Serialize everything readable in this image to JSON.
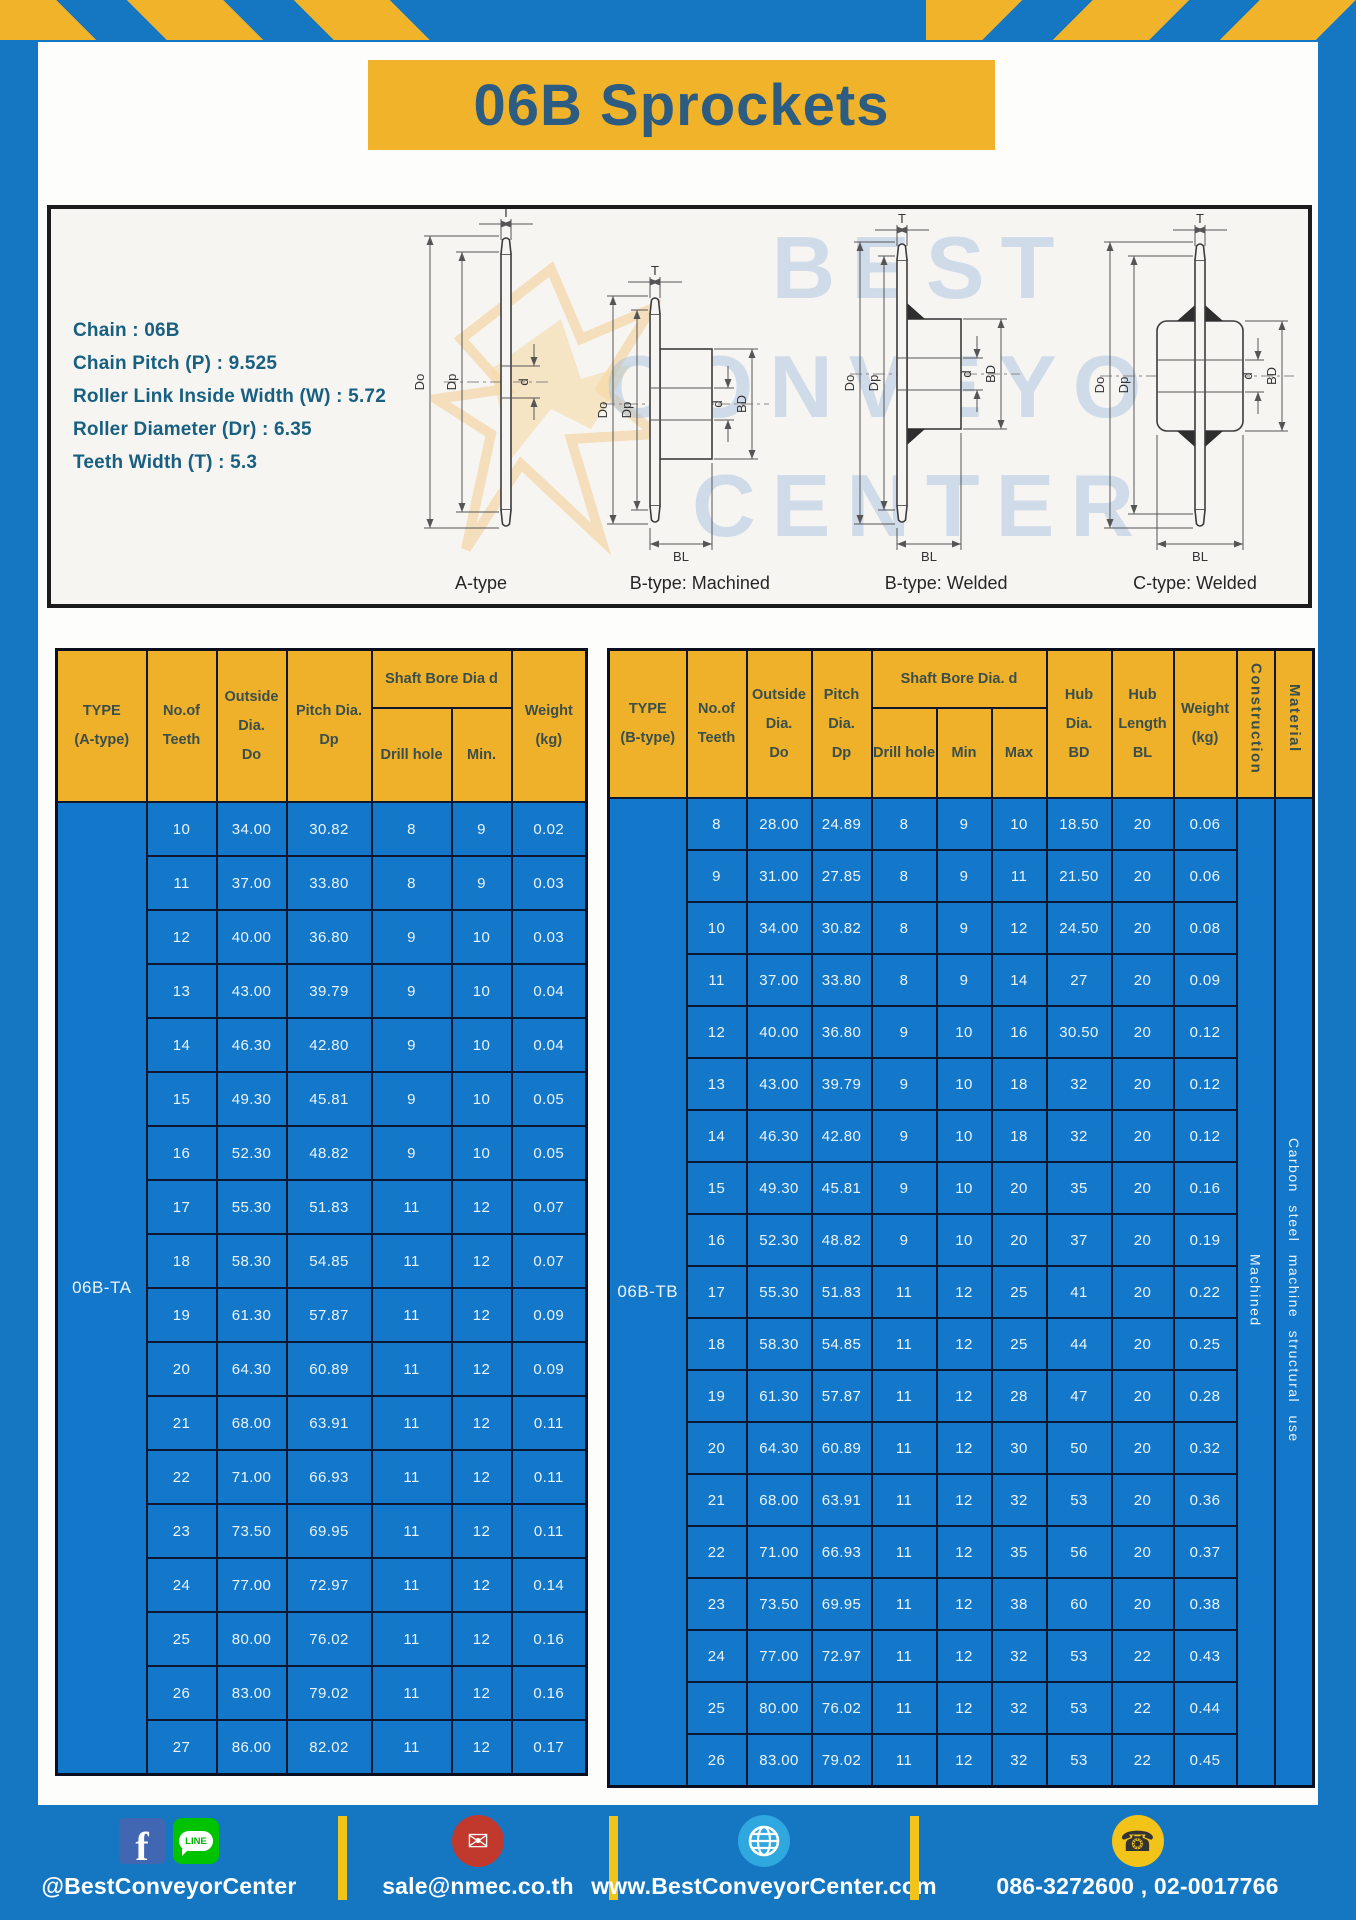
{
  "page": {
    "title": "06B Sprockets"
  },
  "specs": {
    "lines": [
      "Chain : 06B",
      "Chain Pitch (P) : 9.525",
      "Roller Link Inside Width (W) : 5.72",
      "Roller Diameter (Dr) : 6.35",
      "Teeth Width (T) : 5.3"
    ]
  },
  "watermark": {
    "line1": "BEST",
    "line2": "CONVEYOR",
    "line3": "CENTER"
  },
  "diagrams": {
    "captions": [
      "A-type",
      "B-type: Machined",
      "B-type: Welded",
      "C-type: Welded"
    ],
    "dim_labels": {
      "T": "T",
      "Do": "Do",
      "Dp": "Dp",
      "d": "d",
      "BD": "BD",
      "BL": "BL"
    }
  },
  "table_a": {
    "type_label": "06B-TA",
    "headers": {
      "type": "TYPE\n(A-type)",
      "teeth": "No.of\nTeeth",
      "outside": "Outside\nDia.\nDo",
      "pitch": "Pitch Dia.\nDp",
      "shaft": "Shaft Bore Dia d",
      "drill": "Drill hole",
      "min": "Min.",
      "weight": "Weight\n(kg)"
    },
    "rows": [
      [
        "10",
        "34.00",
        "30.82",
        "8",
        "9",
        "0.02"
      ],
      [
        "11",
        "37.00",
        "33.80",
        "8",
        "9",
        "0.03"
      ],
      [
        "12",
        "40.00",
        "36.80",
        "9",
        "10",
        "0.03"
      ],
      [
        "13",
        "43.00",
        "39.79",
        "9",
        "10",
        "0.04"
      ],
      [
        "14",
        "46.30",
        "42.80",
        "9",
        "10",
        "0.04"
      ],
      [
        "15",
        "49.30",
        "45.81",
        "9",
        "10",
        "0.05"
      ],
      [
        "16",
        "52.30",
        "48.82",
        "9",
        "10",
        "0.05"
      ],
      [
        "17",
        "55.30",
        "51.83",
        "11",
        "12",
        "0.07"
      ],
      [
        "18",
        "58.30",
        "54.85",
        "11",
        "12",
        "0.07"
      ],
      [
        "19",
        "61.30",
        "57.87",
        "11",
        "12",
        "0.09"
      ],
      [
        "20",
        "64.30",
        "60.89",
        "11",
        "12",
        "0.09"
      ],
      [
        "21",
        "68.00",
        "63.91",
        "11",
        "12",
        "0.11"
      ],
      [
        "22",
        "71.00",
        "66.93",
        "11",
        "12",
        "0.11"
      ],
      [
        "23",
        "73.50",
        "69.95",
        "11",
        "12",
        "0.11"
      ],
      [
        "24",
        "77.00",
        "72.97",
        "11",
        "12",
        "0.14"
      ],
      [
        "25",
        "80.00",
        "76.02",
        "11",
        "12",
        "0.16"
      ],
      [
        "26",
        "83.00",
        "79.02",
        "11",
        "12",
        "0.16"
      ],
      [
        "27",
        "86.00",
        "82.02",
        "11",
        "12",
        "0.17"
      ]
    ]
  },
  "table_b": {
    "type_label": "06B-TB",
    "construction": "Machined",
    "material": "Carbon steel machine structural use",
    "headers": {
      "type": "TYPE\n(B-type)",
      "teeth": "No.of\nTeeth",
      "outside": "Outside\nDia.\nDo",
      "pitch": "Pitch\nDia.\nDp",
      "shaft": "Shaft Bore Dia. d",
      "drill": "Drill hole",
      "min": "Min",
      "max": "Max",
      "hub_dia": "Hub\nDia.\nBD",
      "hub_len": "Hub\nLength\nBL",
      "weight": "Weight\n(kg)",
      "construction": "Construction",
      "material": "Material"
    },
    "rows": [
      [
        "8",
        "28.00",
        "24.89",
        "8",
        "9",
        "10",
        "18.50",
        "20",
        "0.06"
      ],
      [
        "9",
        "31.00",
        "27.85",
        "8",
        "9",
        "11",
        "21.50",
        "20",
        "0.06"
      ],
      [
        "10",
        "34.00",
        "30.82",
        "8",
        "9",
        "12",
        "24.50",
        "20",
        "0.08"
      ],
      [
        "11",
        "37.00",
        "33.80",
        "8",
        "9",
        "14",
        "27",
        "20",
        "0.09"
      ],
      [
        "12",
        "40.00",
        "36.80",
        "9",
        "10",
        "16",
        "30.50",
        "20",
        "0.12"
      ],
      [
        "13",
        "43.00",
        "39.79",
        "9",
        "10",
        "18",
        "32",
        "20",
        "0.12"
      ],
      [
        "14",
        "46.30",
        "42.80",
        "9",
        "10",
        "18",
        "32",
        "20",
        "0.12"
      ],
      [
        "15",
        "49.30",
        "45.81",
        "9",
        "10",
        "20",
        "35",
        "20",
        "0.16"
      ],
      [
        "16",
        "52.30",
        "48.82",
        "9",
        "10",
        "20",
        "37",
        "20",
        "0.19"
      ],
      [
        "17",
        "55.30",
        "51.83",
        "11",
        "12",
        "25",
        "41",
        "20",
        "0.22"
      ],
      [
        "18",
        "58.30",
        "54.85",
        "11",
        "12",
        "25",
        "44",
        "20",
        "0.25"
      ],
      [
        "19",
        "61.30",
        "57.87",
        "11",
        "12",
        "28",
        "47",
        "20",
        "0.28"
      ],
      [
        "20",
        "64.30",
        "60.89",
        "11",
        "12",
        "30",
        "50",
        "20",
        "0.32"
      ],
      [
        "21",
        "68.00",
        "63.91",
        "11",
        "12",
        "32",
        "53",
        "20",
        "0.36"
      ],
      [
        "22",
        "71.00",
        "66.93",
        "11",
        "12",
        "35",
        "56",
        "20",
        "0.37"
      ],
      [
        "23",
        "73.50",
        "69.95",
        "11",
        "12",
        "38",
        "60",
        "20",
        "0.38"
      ],
      [
        "24",
        "77.00",
        "72.97",
        "11",
        "12",
        "32",
        "53",
        "22",
        "0.43"
      ],
      [
        "25",
        "80.00",
        "76.02",
        "11",
        "12",
        "32",
        "53",
        "22",
        "0.44"
      ],
      [
        "26",
        "83.00",
        "79.02",
        "11",
        "12",
        "32",
        "53",
        "22",
        "0.45"
      ]
    ]
  },
  "footer": {
    "facebook_letter": "f",
    "line_label": "LINE",
    "social_handle": "@BestConveyorCenter",
    "email": "sale@nmec.co.th",
    "website": "www.BestConveyorCenter.com",
    "phone": "086-3272600 , 02-0017766"
  },
  "colors": {
    "frame_blue": "#1577c2",
    "stripe_yellow": "#f0b32a",
    "cell_blue": "#1478ca",
    "header_yellow": "#efb02a",
    "title_text": "#2d5c82",
    "spec_text": "#185f80",
    "divider_yellow": "#f2c318"
  }
}
